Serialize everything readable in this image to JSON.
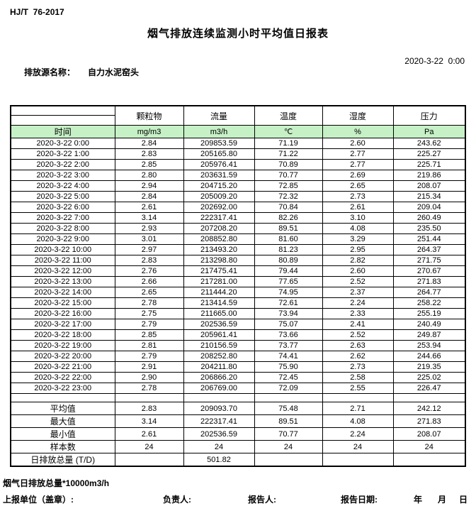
{
  "page": {
    "standard": "HJ/T  76-2017",
    "title": "烟气排放连续监测小时平均值日报表",
    "source_label": "排放源名称：",
    "source_name": "自力水泥窑头",
    "datetime": "2020-3-22  0:00"
  },
  "colors": {
    "unit_row_green": "#c6f0c6",
    "border": "#000000"
  },
  "table": {
    "time_header": "时间",
    "columns": [
      {
        "name": "颗粒物",
        "unit": "mg/m3"
      },
      {
        "name": "流量",
        "unit": "m3/h"
      },
      {
        "name": "温度",
        "unit": "℃"
      },
      {
        "name": "湿度",
        "unit": "%"
      },
      {
        "name": "压力",
        "unit": "Pa"
      }
    ],
    "rows": [
      {
        "time": "2020-3-22 0:00",
        "values": [
          "2.84",
          "209853.59",
          "71.19",
          "2.60",
          "243.62"
        ]
      },
      {
        "time": "2020-3-22 1:00",
        "values": [
          "2.83",
          "205165.80",
          "71.22",
          "2.77",
          "225.27"
        ]
      },
      {
        "time": "2020-3-22 2:00",
        "values": [
          "2.85",
          "205976.41",
          "70.89",
          "2.77",
          "225.71"
        ]
      },
      {
        "time": "2020-3-22 3:00",
        "values": [
          "2.80",
          "203631.59",
          "70.77",
          "2.69",
          "219.86"
        ]
      },
      {
        "time": "2020-3-22 4:00",
        "values": [
          "2.94",
          "204715.20",
          "72.85",
          "2.65",
          "208.07"
        ]
      },
      {
        "time": "2020-3-22 5:00",
        "values": [
          "2.84",
          "205009.20",
          "72.32",
          "2.73",
          "215.34"
        ]
      },
      {
        "time": "2020-3-22 6:00",
        "values": [
          "2.61",
          "202692.00",
          "70.84",
          "2.61",
          "209.04"
        ]
      },
      {
        "time": "2020-3-22 7:00",
        "values": [
          "3.14",
          "222317.41",
          "82.26",
          "3.10",
          "260.49"
        ]
      },
      {
        "time": "2020-3-22 8:00",
        "values": [
          "2.93",
          "207208.20",
          "89.51",
          "4.08",
          "235.50"
        ]
      },
      {
        "time": "2020-3-22 9:00",
        "values": [
          "3.01",
          "208852.80",
          "81.60",
          "3.29",
          "251.44"
        ]
      },
      {
        "time": "2020-3-22 10:00",
        "values": [
          "2.97",
          "213493.20",
          "81.23",
          "2.95",
          "264.37"
        ]
      },
      {
        "time": "2020-3-22 11:00",
        "values": [
          "2.83",
          "213298.80",
          "80.89",
          "2.82",
          "271.75"
        ]
      },
      {
        "time": "2020-3-22 12:00",
        "values": [
          "2.76",
          "217475.41",
          "79.44",
          "2.60",
          "270.67"
        ]
      },
      {
        "time": "2020-3-22 13:00",
        "values": [
          "2.66",
          "217281.00",
          "77.65",
          "2.52",
          "271.83"
        ]
      },
      {
        "time": "2020-3-22 14:00",
        "values": [
          "2.65",
          "211444.20",
          "74.95",
          "2.37",
          "264.77"
        ]
      },
      {
        "time": "2020-3-22 15:00",
        "values": [
          "2.78",
          "213414.59",
          "72.61",
          "2.24",
          "258.22"
        ]
      },
      {
        "time": "2020-3-22 16:00",
        "values": [
          "2.75",
          "211665.00",
          "73.94",
          "2.33",
          "255.19"
        ]
      },
      {
        "time": "2020-3-22 17:00",
        "values": [
          "2.79",
          "202536.59",
          "75.07",
          "2.41",
          "240.49"
        ]
      },
      {
        "time": "2020-3-22 18:00",
        "values": [
          "2.85",
          "205961.41",
          "73.66",
          "2.52",
          "249.87"
        ]
      },
      {
        "time": "2020-3-22 19:00",
        "values": [
          "2.81",
          "210156.59",
          "73.77",
          "2.63",
          "253.94"
        ]
      },
      {
        "time": "2020-3-22 20:00",
        "values": [
          "2.79",
          "208252.80",
          "74.41",
          "2.62",
          "244.66"
        ]
      },
      {
        "time": "2020-3-22 21:00",
        "values": [
          "2.91",
          "204211.80",
          "75.90",
          "2.73",
          "219.35"
        ]
      },
      {
        "time": "2020-3-22 22:00",
        "values": [
          "2.90",
          "206866.20",
          "72.45",
          "2.58",
          "225.02"
        ]
      },
      {
        "time": "2020-3-22 23:00",
        "values": [
          "2.78",
          "206769.00",
          "72.09",
          "2.55",
          "226.47"
        ]
      }
    ],
    "summary": [
      {
        "label": "平均值",
        "values": [
          "2.83",
          "209093.70",
          "75.48",
          "2.71",
          "242.12"
        ]
      },
      {
        "label": "最大值",
        "values": [
          "3.14",
          "222317.41",
          "89.51",
          "4.08",
          "271.83"
        ]
      },
      {
        "label": "最小值",
        "values": [
          "2.61",
          "202536.59",
          "70.77",
          "2.24",
          "208.07"
        ]
      },
      {
        "label": "样本数",
        "values": [
          "24",
          "24",
          "24",
          "24",
          "24"
        ]
      },
      {
        "label": "日排放总量 (T/D)",
        "values": [
          "",
          "501.82",
          "",
          "",
          ""
        ]
      }
    ]
  },
  "footer": {
    "note": "烟气日排放总量*10000m3/h",
    "report_unit_label": "上报单位（盖章）:",
    "responsible_label": "负责人:",
    "reporter_label": "报告人:",
    "report_date_label": "报告日期:",
    "year_label": "年",
    "month_label": "月",
    "day_label": "日"
  }
}
